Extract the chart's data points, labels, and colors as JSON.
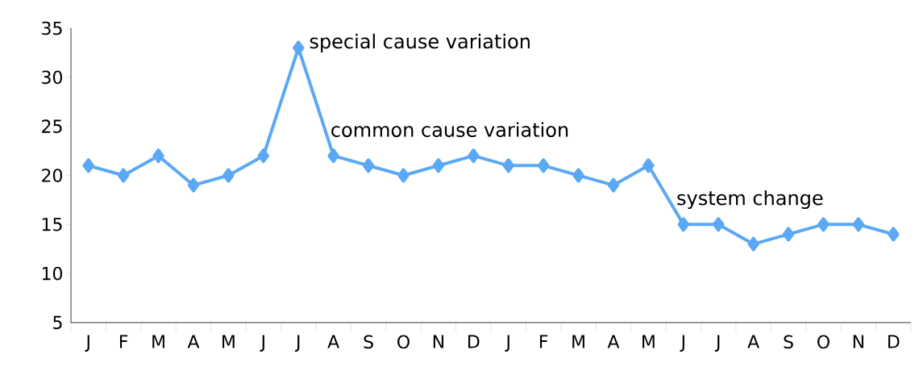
{
  "chart_data": {
    "type": "line",
    "categories": [
      "J",
      "F",
      "M",
      "A",
      "M",
      "J",
      "J",
      "A",
      "S",
      "O",
      "N",
      "D",
      "J",
      "F",
      "M",
      "A",
      "M",
      "J",
      "J",
      "A",
      "S",
      "O",
      "N",
      "D"
    ],
    "series": [
      {
        "color": "#5ba8f5",
        "values": [
          21,
          20,
          22,
          19,
          20,
          22,
          33,
          22,
          21,
          20,
          21,
          22,
          21,
          21,
          20,
          19,
          21,
          15,
          15,
          13,
          14,
          15,
          15,
          14
        ]
      }
    ],
    "ylim": [
      5,
      35
    ],
    "yticks": [
      5,
      10,
      15,
      20,
      25,
      30,
      35
    ],
    "grid": false,
    "marker": "diamond",
    "line_style": "solid",
    "annotations": [
      "special cause variation",
      "common cause variation",
      "system change"
    ]
  }
}
